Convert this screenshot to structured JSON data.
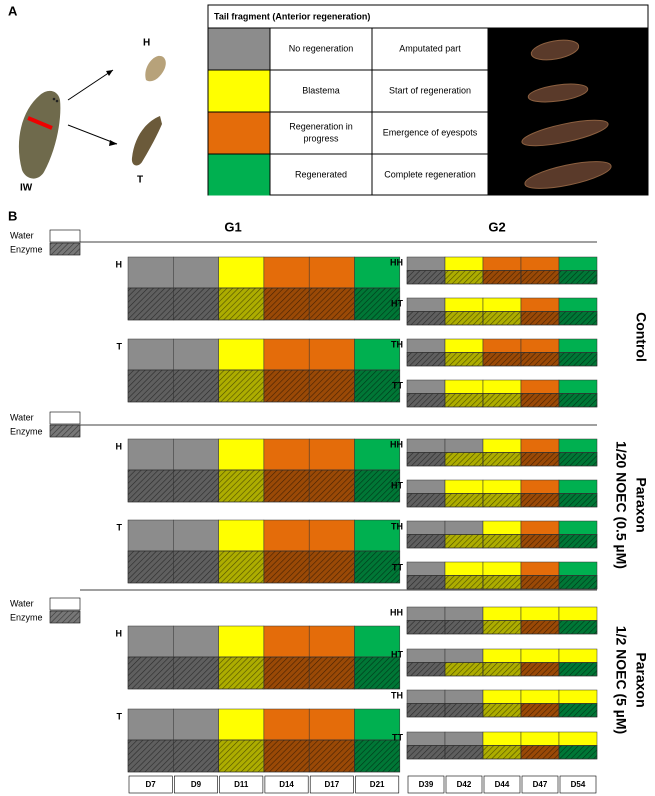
{
  "panel_a": {
    "label": "A",
    "worm_labels": {
      "intact": "IW",
      "head": "H",
      "tail": "T"
    },
    "table": {
      "title": "Tail fragment (Anterior regeneration)",
      "rows": [
        {
          "color": "#8c8c8c",
          "stage": "No regeneration",
          "description": "Amputated part"
        },
        {
          "color": "#ffff00",
          "stage": "Blastema",
          "description": "Start of regeneration"
        },
        {
          "color": "#e46c0a",
          "stage": [
            "Regeneration in",
            "progress"
          ],
          "description": "Emergence of eyespots"
        },
        {
          "color": "#00b050",
          "stage": "Regenerated",
          "description": "Complete regeneration"
        }
      ]
    }
  },
  "panel_b": {
    "label": "B",
    "legend": [
      "Water",
      "Enzyme"
    ],
    "g1_title": "G1",
    "g2_title": "G2",
    "g1_days": [
      "D7",
      "D9",
      "D11",
      "D14",
      "D17",
      "D21"
    ],
    "g2_days": [
      "D39",
      "D42",
      "D44",
      "D47",
      "D54"
    ],
    "conditions": [
      {
        "name": [
          "Control"
        ],
        "g1": [
          {
            "label": "H",
            "water": [
              "#8c8c8c",
              "#8c8c8c",
              "#ffff00",
              "#e46c0a",
              "#e46c0a",
              "#00b050"
            ],
            "enzyme": [
              "#8c8c8c",
              "#8c8c8c",
              "#ffff00",
              "#e46c0a",
              "#e46c0a",
              "#00b050"
            ]
          },
          {
            "label": "T",
            "water": [
              "#8c8c8c",
              "#8c8c8c",
              "#ffff00",
              "#e46c0a",
              "#e46c0a",
              "#00b050"
            ],
            "enzyme": [
              "#8c8c8c",
              "#8c8c8c",
              "#ffff00",
              "#e46c0a",
              "#e46c0a",
              "#00b050"
            ]
          }
        ],
        "g2": [
          {
            "label": "HH",
            "water": [
              "#8c8c8c",
              "#ffff00",
              "#e46c0a",
              "#e46c0a",
              "#00b050"
            ],
            "enzyme": [
              "#8c8c8c",
              "#ffff00",
              "#e46c0a",
              "#e46c0a",
              "#00b050"
            ]
          },
          {
            "label": "HT",
            "water": [
              "#8c8c8c",
              "#ffff00",
              "#ffff00",
              "#e46c0a",
              "#00b050"
            ],
            "enzyme": [
              "#8c8c8c",
              "#ffff00",
              "#ffff00",
              "#e46c0a",
              "#00b050"
            ]
          },
          {
            "label": "TH",
            "water": [
              "#8c8c8c",
              "#ffff00",
              "#e46c0a",
              "#e46c0a",
              "#00b050"
            ],
            "enzyme": [
              "#8c8c8c",
              "#ffff00",
              "#e46c0a",
              "#e46c0a",
              "#00b050"
            ]
          },
          {
            "label": "TT",
            "water": [
              "#8c8c8c",
              "#ffff00",
              "#ffff00",
              "#e46c0a",
              "#00b050"
            ],
            "enzyme": [
              "#8c8c8c",
              "#ffff00",
              "#ffff00",
              "#e46c0a",
              "#00b050"
            ]
          }
        ]
      },
      {
        "name": [
          "Paraxon",
          "1/20 NOEC (0.5 µM)"
        ],
        "g1": [
          {
            "label": "H",
            "water": [
              "#8c8c8c",
              "#8c8c8c",
              "#ffff00",
              "#e46c0a",
              "#e46c0a",
              "#00b050"
            ],
            "enzyme": [
              "#8c8c8c",
              "#8c8c8c",
              "#ffff00",
              "#e46c0a",
              "#e46c0a",
              "#00b050"
            ]
          },
          {
            "label": "T",
            "water": [
              "#8c8c8c",
              "#8c8c8c",
              "#ffff00",
              "#e46c0a",
              "#e46c0a",
              "#00b050"
            ],
            "enzyme": [
              "#8c8c8c",
              "#8c8c8c",
              "#ffff00",
              "#e46c0a",
              "#e46c0a",
              "#00b050"
            ]
          }
        ],
        "g2": [
          {
            "label": "HH",
            "water": [
              "#8c8c8c",
              "#8c8c8c",
              "#ffff00",
              "#e46c0a",
              "#00b050"
            ],
            "enzyme": [
              "#8c8c8c",
              "#ffff00",
              "#ffff00",
              "#e46c0a",
              "#00b050"
            ]
          },
          {
            "label": "HT",
            "water": [
              "#8c8c8c",
              "#ffff00",
              "#ffff00",
              "#e46c0a",
              "#00b050"
            ],
            "enzyme": [
              "#8c8c8c",
              "#ffff00",
              "#ffff00",
              "#e46c0a",
              "#00b050"
            ]
          },
          {
            "label": "TH",
            "water": [
              "#8c8c8c",
              "#8c8c8c",
              "#ffff00",
              "#e46c0a",
              "#00b050"
            ],
            "enzyme": [
              "#8c8c8c",
              "#ffff00",
              "#ffff00",
              "#e46c0a",
              "#00b050"
            ]
          },
          {
            "label": "TT",
            "water": [
              "#8c8c8c",
              "#ffff00",
              "#ffff00",
              "#e46c0a",
              "#00b050"
            ],
            "enzyme": [
              "#8c8c8c",
              "#ffff00",
              "#ffff00",
              "#e46c0a",
              "#00b050"
            ]
          }
        ]
      },
      {
        "name": [
          "Paraxon",
          "1/2 NOEC (5 µM)"
        ],
        "g1": [
          {
            "label": "H",
            "water": [
              "#8c8c8c",
              "#8c8c8c",
              "#ffff00",
              "#e46c0a",
              "#e46c0a",
              "#00b050"
            ],
            "enzyme": [
              "#8c8c8c",
              "#8c8c8c",
              "#ffff00",
              "#e46c0a",
              "#e46c0a",
              "#00b050"
            ]
          },
          {
            "label": "T",
            "water": [
              "#8c8c8c",
              "#8c8c8c",
              "#ffff00",
              "#e46c0a",
              "#e46c0a",
              "#00b050"
            ],
            "enzyme": [
              "#8c8c8c",
              "#8c8c8c",
              "#ffff00",
              "#e46c0a",
              "#e46c0a",
              "#00b050"
            ]
          }
        ],
        "g2": [
          {
            "label": "HH",
            "water": [
              "#8c8c8c",
              "#8c8c8c",
              "#ffff00",
              "#ffff00",
              "#ffff00"
            ],
            "enzyme": [
              "#8c8c8c",
              "#8c8c8c",
              "#ffff00",
              "#e46c0a",
              "#00b050"
            ]
          },
          {
            "label": "HT",
            "water": [
              "#8c8c8c",
              "#8c8c8c",
              "#ffff00",
              "#ffff00",
              "#ffff00"
            ],
            "enzyme": [
              "#8c8c8c",
              "#ffff00",
              "#ffff00",
              "#e46c0a",
              "#00b050"
            ]
          },
          {
            "label": "TH",
            "water": [
              "#8c8c8c",
              "#8c8c8c",
              "#ffff00",
              "#ffff00",
              "#ffff00"
            ],
            "enzyme": [
              "#8c8c8c",
              "#8c8c8c",
              "#ffff00",
              "#e46c0a",
              "#00b050"
            ]
          },
          {
            "label": "TT",
            "water": [
              "#8c8c8c",
              "#8c8c8c",
              "#ffff00",
              "#ffff00",
              "#ffff00"
            ],
            "enzyme": [
              "#8c8c8c",
              "#8c8c8c",
              "#ffff00",
              "#e46c0a",
              "#00b050"
            ]
          }
        ]
      }
    ]
  }
}
